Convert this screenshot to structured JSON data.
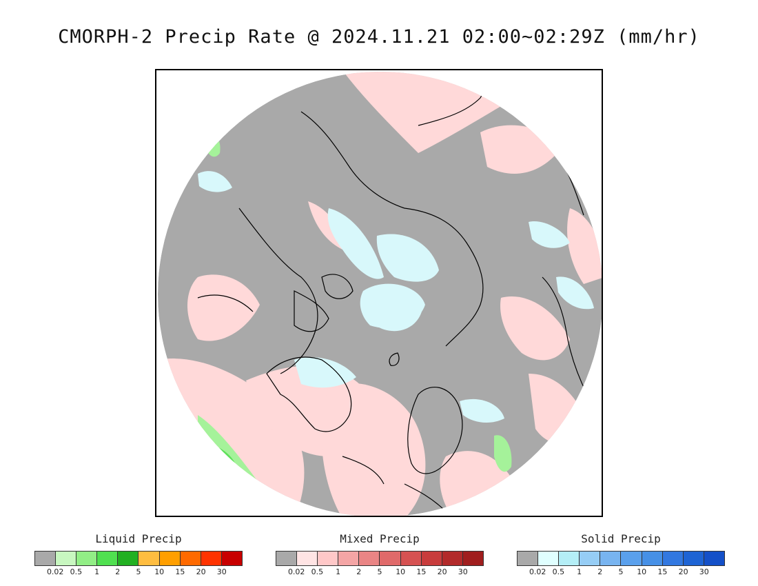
{
  "title": "CMORPH-2 Precip Rate @ 2024.11.21 02:00~02:29Z (mm/hr)",
  "legends": [
    {
      "title": "Liquid Precip",
      "colors": [
        "#a9a9a9",
        "#c8f7c0",
        "#92ee86",
        "#50e050",
        "#22b022",
        "#ffbd40",
        "#ff9f00",
        "#ff6a00",
        "#ff3300",
        "#c80000"
      ],
      "ticks": [
        "0.02",
        "0.5",
        "1",
        "2",
        "5",
        "10",
        "15",
        "20",
        "30"
      ]
    },
    {
      "title": "Mixed Precip",
      "colors": [
        "#a9a9a9",
        "#ffe4e4",
        "#ffc8c8",
        "#f4a5a5",
        "#ea8585",
        "#e06a6a",
        "#d65252",
        "#c83c3c",
        "#b22a2a",
        "#a01e1e"
      ],
      "ticks": [
        "0.02",
        "0.5",
        "1",
        "2",
        "5",
        "10",
        "15",
        "20",
        "30"
      ]
    },
    {
      "title": "Solid Precip",
      "colors": [
        "#a9a9a9",
        "#e0ffff",
        "#b4eef6",
        "#96cdf5",
        "#78b4f0",
        "#5aa0ec",
        "#4690e6",
        "#3278e0",
        "#1e64d4",
        "#1450c8"
      ],
      "ticks": [
        "0.02",
        "0.5",
        "1",
        "2",
        "5",
        "10",
        "15",
        "20",
        "30"
      ]
    }
  ],
  "map": {
    "no_data_color": "#a9a9a9",
    "mixed_light_color": "#ffd9d9",
    "solid_light_color": "#d8f8fb",
    "liquid_color": "#a5f29a",
    "liquid_strong_color": "#5ee05a",
    "coast_color": "#000000",
    "outside_color": "#ffffff"
  }
}
